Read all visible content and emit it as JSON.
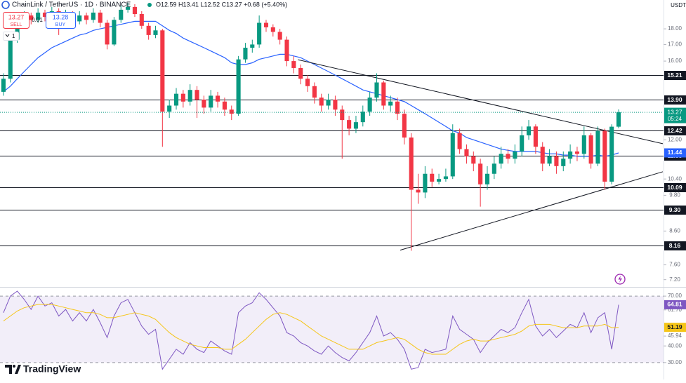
{
  "header": {
    "symbol": "ChainLink / TetherUS · 1D · BINANCE",
    "ohlc": "O12.59 H13.41 L12.52 C13.27 +0.68 (+5.40%)",
    "sell_price": "13.27",
    "sell": "SELL",
    "spread": "0.01",
    "buy_price": "13.28",
    "buy": "BUY",
    "quantity": "1"
  },
  "currency": "USDT",
  "countdown": "05:24",
  "brand": "TradingView",
  "chart_data": [
    {
      "type": "candlestick",
      "log_scale": true,
      "up_color": "#089981",
      "down_color": "#f23645",
      "xlim": [
        -0.5,
        95.5
      ],
      "ylim": [
        7.03,
        20.0
      ],
      "yticks": [
        {
          "value": 18,
          "label": "18.00"
        },
        {
          "value": 17,
          "label": "17.00"
        },
        {
          "value": 16,
          "label": "16.00"
        },
        {
          "value": 12,
          "label": "12.00"
        },
        {
          "value": 10.4,
          "label": "10.40"
        },
        {
          "value": 9.8,
          "label": "9.80"
        },
        {
          "value": 8.6,
          "label": "8.60"
        },
        {
          "value": 7.6,
          "label": "7.60"
        },
        {
          "value": 7.2,
          "label": "7.20"
        }
      ],
      "candles": [
        [
          14.3,
          15.3,
          14.1,
          15.0
        ],
        [
          15.0,
          17.6,
          14.8,
          17.3
        ],
        [
          17.3,
          18.7,
          17.1,
          18.4
        ],
        [
          18.4,
          19.2,
          18.2,
          18.9
        ],
        [
          18.9,
          19.1,
          18.3,
          18.6
        ],
        [
          18.6,
          19.4,
          18.4,
          19.1
        ],
        [
          19.1,
          19.3,
          18.5,
          18.8
        ],
        [
          18.8,
          19.5,
          18.6,
          19.2
        ],
        [
          19.2,
          19.4,
          17.6,
          18.7
        ],
        [
          18.7,
          19.3,
          18.5,
          19.0
        ],
        [
          19.0,
          19.2,
          18.2,
          18.5
        ],
        [
          18.5,
          19.2,
          18.3,
          18.9
        ],
        [
          18.9,
          19.1,
          18.3,
          18.6
        ],
        [
          18.6,
          19.4,
          18.4,
          19.1
        ],
        [
          19.1,
          19.3,
          18.1,
          18.4
        ],
        [
          18.4,
          18.6,
          16.7,
          17.0
        ],
        [
          17.0,
          18.8,
          16.9,
          18.6
        ],
        [
          18.6,
          19.6,
          18.4,
          19.3
        ],
        [
          19.3,
          19.8,
          19.1,
          19.5
        ],
        [
          19.5,
          19.7,
          18.8,
          19.0
        ],
        [
          19.0,
          19.2,
          18.0,
          18.2
        ],
        [
          18.2,
          18.4,
          17.3,
          17.6
        ],
        [
          17.6,
          18.2,
          17.4,
          17.9
        ],
        [
          17.9,
          18.0,
          11.7,
          13.3
        ],
        [
          13.3,
          13.9,
          13.0,
          13.6
        ],
        [
          13.6,
          14.5,
          13.4,
          14.2
        ],
        [
          14.2,
          14.4,
          13.5,
          13.8
        ],
        [
          13.8,
          14.7,
          13.6,
          14.4
        ],
        [
          14.4,
          14.6,
          13.0,
          13.9
        ],
        [
          13.9,
          14.1,
          13.2,
          13.5
        ],
        [
          13.5,
          14.4,
          13.3,
          14.1
        ],
        [
          14.1,
          14.3,
          13.5,
          13.8
        ],
        [
          13.8,
          14.0,
          13.1,
          13.4
        ],
        [
          13.4,
          13.6,
          12.9,
          13.2
        ],
        [
          13.2,
          16.3,
          13.1,
          16.1
        ],
        [
          16.1,
          17.1,
          15.9,
          16.8
        ],
        [
          16.8,
          17.3,
          16.5,
          17.0
        ],
        [
          17.0,
          18.9,
          16.8,
          18.4
        ],
        [
          18.4,
          18.6,
          17.8,
          18.1
        ],
        [
          18.1,
          18.3,
          17.5,
          17.8
        ],
        [
          17.8,
          18.0,
          17.0,
          17.3
        ],
        [
          17.3,
          17.5,
          15.7,
          16.0
        ],
        [
          16.0,
          16.3,
          15.3,
          15.6
        ],
        [
          15.6,
          15.8,
          14.7,
          15.0
        ],
        [
          15.0,
          15.2,
          14.3,
          14.6
        ],
        [
          14.6,
          14.8,
          13.7,
          14.0
        ],
        [
          14.0,
          14.2,
          13.3,
          13.6
        ],
        [
          13.6,
          14.2,
          13.4,
          13.9
        ],
        [
          13.9,
          14.1,
          13.1,
          13.4
        ],
        [
          13.4,
          13.6,
          11.2,
          12.9
        ],
        [
          12.9,
          13.1,
          12.2,
          12.5
        ],
        [
          12.5,
          13.1,
          12.3,
          12.8
        ],
        [
          12.8,
          13.6,
          12.6,
          13.3
        ],
        [
          13.3,
          14.3,
          13.1,
          14.0
        ],
        [
          14.0,
          15.3,
          13.8,
          14.8
        ],
        [
          14.8,
          14.9,
          13.4,
          13.6
        ],
        [
          13.6,
          14.1,
          13.3,
          13.8
        ],
        [
          13.8,
          14.0,
          12.9,
          13.2
        ],
        [
          13.2,
          13.4,
          11.8,
          12.1
        ],
        [
          12.1,
          12.3,
          8.0,
          10.0
        ],
        [
          10.0,
          10.6,
          9.5,
          9.9
        ],
        [
          9.9,
          10.9,
          9.7,
          10.6
        ],
        [
          10.6,
          10.8,
          10.1,
          10.3
        ],
        [
          10.3,
          10.6,
          10.2,
          10.4
        ],
        [
          10.4,
          10.8,
          10.3,
          10.5
        ],
        [
          10.5,
          12.7,
          10.4,
          12.3
        ],
        [
          12.3,
          12.5,
          11.4,
          11.6
        ],
        [
          11.6,
          11.8,
          11.0,
          11.3
        ],
        [
          11.3,
          11.5,
          10.7,
          11.0
        ],
        [
          11.0,
          11.2,
          9.4,
          10.2
        ],
        [
          10.2,
          10.9,
          10.0,
          10.6
        ],
        [
          10.6,
          11.3,
          10.4,
          11.0
        ],
        [
          11.0,
          11.7,
          10.8,
          11.4
        ],
        [
          11.4,
          11.6,
          11.0,
          11.2
        ],
        [
          11.2,
          11.8,
          11.0,
          11.5
        ],
        [
          11.5,
          12.6,
          11.3,
          12.2
        ],
        [
          12.2,
          12.9,
          12.0,
          12.6
        ],
        [
          12.6,
          12.7,
          11.4,
          11.7
        ],
        [
          11.7,
          11.9,
          10.7,
          11.0
        ],
        [
          11.0,
          11.6,
          10.9,
          11.3
        ],
        [
          11.3,
          11.5,
          10.6,
          10.9
        ],
        [
          10.9,
          11.5,
          10.7,
          11.2
        ],
        [
          11.2,
          11.8,
          11.0,
          11.5
        ],
        [
          11.5,
          11.7,
          11.1,
          11.4
        ],
        [
          11.4,
          12.6,
          11.2,
          12.2
        ],
        [
          12.2,
          12.3,
          10.8,
          11.0
        ],
        [
          11.0,
          12.6,
          10.9,
          12.4
        ],
        [
          12.4,
          12.5,
          10.0,
          10.3
        ],
        [
          10.3,
          12.7,
          10.2,
          12.59
        ],
        [
          12.59,
          13.41,
          12.52,
          13.27
        ]
      ],
      "ma": {
        "color": "#2962ff",
        "values": [
          14.3,
          14.6,
          15.0,
          15.4,
          15.8,
          16.2,
          16.5,
          16.8,
          17.0,
          17.2,
          17.4,
          17.6,
          17.7,
          17.9,
          18.0,
          18.1,
          18.2,
          18.3,
          18.4,
          18.5,
          18.5,
          18.5,
          18.5,
          18.2,
          17.9,
          17.7,
          17.4,
          17.2,
          17.0,
          16.8,
          16.6,
          16.4,
          16.2,
          15.9,
          15.8,
          15.8,
          15.9,
          16.1,
          16.2,
          16.3,
          16.4,
          16.4,
          16.3,
          16.2,
          16.0,
          15.8,
          15.6,
          15.4,
          15.2,
          15.0,
          14.8,
          14.6,
          14.4,
          14.3,
          14.2,
          14.1,
          14.0,
          13.9,
          13.8,
          13.6,
          13.4,
          13.2,
          13.0,
          12.8,
          12.6,
          12.4,
          12.3,
          12.1,
          12.0,
          11.9,
          11.8,
          11.7,
          11.6,
          11.55,
          11.5,
          11.5,
          11.5,
          11.5,
          11.45,
          11.4,
          11.4,
          11.35,
          11.35,
          11.3,
          11.3,
          11.3,
          11.35,
          11.3,
          11.35,
          11.44
        ]
      },
      "levels": [
        15.21,
        {
          "value": 13.9,
          "label": "13.90"
        },
        12.42,
        11.33,
        10.09,
        {
          "value": 9.3,
          "label": "9.30"
        },
        8.16
      ],
      "trendlines": [
        {
          "x": [
            42.6,
            95.4
          ],
          "y": [
            16.08,
            11.83
          ]
        },
        {
          "x": [
            57.4,
            95.4
          ],
          "y": [
            8.02,
            10.68
          ]
        }
      ]
    },
    {
      "type": "line",
      "xlim": [
        -0.5,
        95.5
      ],
      "ylim": [
        19.8,
        74.7
      ],
      "band": [
        30,
        70
      ],
      "yticks": [
        {
          "value": 70,
          "label": "70.00"
        },
        {
          "value": 61.7,
          "label": "61.70"
        },
        {
          "value": 45.94,
          "label": "45.94"
        },
        {
          "value": 40,
          "label": "40.00"
        },
        {
          "value": 30,
          "label": "30.00"
        }
      ],
      "series": [
        {
          "color": "#7e57c2",
          "values": [
            60,
            70,
            73,
            68,
            62,
            70,
            64,
            66,
            58,
            62,
            55,
            60,
            55,
            62,
            54,
            45,
            58,
            66,
            68,
            60,
            52,
            47,
            50,
            26,
            32,
            38,
            35,
            42,
            38,
            36,
            43,
            40,
            37,
            35,
            60,
            64,
            66,
            72,
            68,
            63,
            58,
            48,
            46,
            42,
            40,
            37,
            35,
            40,
            36,
            33,
            31,
            36,
            42,
            48,
            58,
            46,
            48,
            44,
            38,
            26,
            27,
            38,
            36,
            37,
            38,
            58,
            50,
            47,
            44,
            36,
            42,
            46,
            50,
            48,
            51,
            60,
            68,
            52,
            46,
            50,
            45,
            49,
            53,
            51,
            60,
            48,
            57,
            60,
            38,
            64.81
          ]
        },
        {
          "color": "#f5c518",
          "values": [
            55,
            58,
            61,
            63,
            64,
            65,
            65,
            65,
            64,
            63,
            62,
            61,
            60,
            60,
            59,
            57,
            57,
            58,
            59,
            60,
            59,
            58,
            56,
            52,
            48,
            45,
            43,
            41,
            40,
            39,
            39,
            39,
            38,
            38,
            41,
            44,
            48,
            52,
            56,
            59,
            60,
            59,
            57,
            55,
            52,
            49,
            46,
            44,
            42,
            40,
            38,
            38,
            38,
            40,
            42,
            43,
            44,
            45,
            44,
            41,
            38,
            36,
            35,
            35,
            35,
            38,
            41,
            43,
            44,
            43,
            43,
            44,
            45,
            46,
            47,
            49,
            52,
            53,
            53,
            53,
            52,
            51,
            51,
            51,
            52,
            52,
            52,
            53,
            51,
            51.19
          ]
        }
      ]
    }
  ]
}
